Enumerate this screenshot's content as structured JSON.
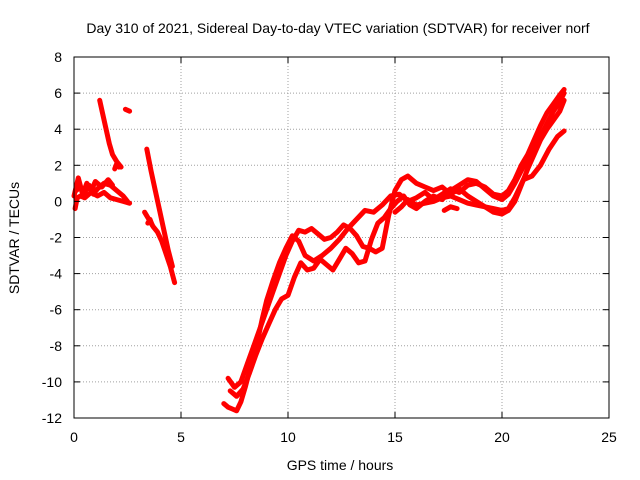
{
  "chart_data": {
    "type": "scatter",
    "title": "Day 310 of 2021, Sidereal Day-to-day VTEC variation (SDTVAR) for receiver norf",
    "xlabel": "GPS time / hours",
    "ylabel": "SDTVAR / TECUs",
    "xlim": [
      0,
      25
    ],
    "ylim": [
      -12,
      8
    ],
    "xticks": [
      0,
      5,
      10,
      15,
      20,
      25
    ],
    "yticks": [
      -12,
      -10,
      -8,
      -6,
      -4,
      -2,
      0,
      2,
      4,
      6,
      8
    ],
    "xtick_labels": [
      "0",
      "5",
      "10",
      "15",
      "20",
      "25"
    ],
    "ytick_labels": [
      "-12",
      "-10",
      "-8",
      "-6",
      "-4",
      "-2",
      "0",
      "2",
      "4",
      "6",
      "8"
    ],
    "grid": true,
    "legend": "none",
    "color": "#ff0000",
    "series": [
      {
        "x": [
          0,
          0.2,
          0.4,
          0.6,
          0.8,
          1.0,
          1.3,
          1.6,
          1.8
        ],
        "y": [
          0.3,
          1.3,
          0.4,
          1.0,
          0.6,
          1.1,
          0.8,
          1.2,
          0.9
        ]
      },
      {
        "x": [
          0.1,
          0.3,
          0.5,
          0.7,
          0.9,
          1.1,
          1.4,
          1.7,
          2.0,
          2.3,
          2.5
        ],
        "y": [
          0.6,
          0.8,
          0.5,
          0.9,
          0.4,
          0.7,
          1.0,
          0.9,
          0.6,
          0.3,
          0.0
        ]
      },
      {
        "x": [
          0.05,
          0.15,
          0.3,
          0.5,
          0.8,
          1.1,
          1.4,
          1.7,
          2.0,
          2.3,
          2.6
        ],
        "y": [
          -0.4,
          0.2,
          0.3,
          0.2,
          0.5,
          0.3,
          0.5,
          0.2,
          0.1,
          0.0,
          -0.1
        ]
      },
      {
        "x": [
          1.2,
          1.35,
          1.5,
          1.65,
          1.8,
          2.0,
          2.2
        ],
        "y": [
          5.6,
          4.8,
          4.0,
          3.2,
          2.6,
          2.2,
          1.9
        ]
      },
      {
        "x": [
          2.4,
          2.6
        ],
        "y": [
          5.1,
          5.0
        ]
      },
      {
        "x": [
          1.9,
          2.0,
          2.1
        ],
        "y": [
          1.8,
          2.1,
          1.9
        ]
      },
      {
        "x": [
          3.4,
          3.6,
          3.8,
          4.0,
          4.2,
          4.4,
          4.6
        ],
        "y": [
          2.9,
          1.7,
          0.6,
          -0.5,
          -1.6,
          -2.7,
          -3.6
        ]
      },
      {
        "x": [
          3.3,
          3.5,
          3.7,
          3.9,
          4.1,
          4.3,
          4.5,
          4.7
        ],
        "y": [
          -0.6,
          -1.0,
          -1.4,
          -1.7,
          -2.2,
          -2.9,
          -3.6,
          -4.5
        ]
      },
      {
        "x": [
          3.45,
          3.55,
          3.65
        ],
        "y": [
          -1.2,
          -1.0,
          -1.3
        ]
      },
      {
        "x": [
          7.0,
          7.2,
          7.4,
          7.6,
          7.8,
          8.0,
          8.2,
          8.4,
          8.6,
          8.8,
          9.0,
          9.3,
          9.6,
          9.9,
          10.2,
          10.5,
          10.8,
          11.2,
          11.6,
          12.0,
          12.4,
          12.8,
          13.2,
          13.6,
          14.0,
          14.4,
          14.8,
          15.2,
          15.6,
          16.0,
          16.4,
          16.8,
          17.2,
          17.6,
          18.0,
          18.4,
          18.8,
          19.2,
          19.6,
          20.0,
          20.3,
          20.6,
          20.9,
          21.2,
          21.5,
          21.8,
          22.1,
          22.4,
          22.7,
          22.9
        ],
        "y": [
          -11.2,
          -11.4,
          -11.5,
          -11.6,
          -11.1,
          -10.3,
          -9.4,
          -8.6,
          -7.6,
          -6.5,
          -5.5,
          -4.4,
          -3.4,
          -2.6,
          -1.9,
          -2.2,
          -3.0,
          -3.3,
          -3.0,
          -2.6,
          -2.1,
          -1.5,
          -1.0,
          -0.5,
          -0.6,
          -0.2,
          0.3,
          0.4,
          0.0,
          0.2,
          0.5,
          0.1,
          0.4,
          0.7,
          0.5,
          0.9,
          1.0,
          0.8,
          0.4,
          0.3,
          0.6,
          1.2,
          2.0,
          2.6,
          3.4,
          4.2,
          4.9,
          5.4,
          5.9,
          6.2
        ]
      },
      {
        "x": [
          7.2,
          7.5,
          7.8,
          8.1,
          8.4,
          8.7,
          9.0,
          9.3,
          9.6,
          9.9,
          10.2,
          10.5,
          10.8,
          11.1,
          11.4,
          11.7,
          12.0,
          12.3,
          12.6,
          12.9,
          13.2,
          13.5,
          13.8,
          14.1,
          14.4,
          14.7,
          15.0,
          15.3,
          15.6,
          16.0,
          16.4,
          16.8,
          17.2,
          17.6,
          18.0,
          18.4,
          18.8,
          19.2,
          19.6,
          20.0,
          20.3,
          20.6,
          20.9,
          21.2,
          21.5,
          21.8,
          22.1,
          22.4,
          22.7,
          22.9
        ],
        "y": [
          -9.8,
          -10.3,
          -10.0,
          -9.0,
          -8.0,
          -7.0,
          -6.0,
          -5.0,
          -4.0,
          -3.0,
          -2.2,
          -1.6,
          -1.7,
          -1.5,
          -1.8,
          -2.1,
          -2.0,
          -1.7,
          -1.3,
          -1.5,
          -1.9,
          -2.5,
          -2.6,
          -2.8,
          -2.6,
          -0.8,
          0.6,
          1.2,
          1.4,
          1.0,
          0.8,
          0.6,
          0.8,
          0.4,
          0.7,
          0.3,
          0.0,
          -0.3,
          -0.6,
          -0.7,
          -0.5,
          0.0,
          0.9,
          1.8,
          2.6,
          3.4,
          4.0,
          4.5,
          5.0,
          5.6
        ]
      },
      {
        "x": [
          7.3,
          7.6,
          7.9,
          8.2,
          8.5,
          8.8,
          9.1,
          9.4,
          9.7,
          10.0,
          10.3,
          10.6,
          10.9,
          11.2,
          11.5,
          11.8,
          12.1,
          12.4,
          12.7,
          13.0,
          13.3,
          13.6,
          13.9,
          14.2,
          14.5,
          14.8,
          15.1,
          15.4,
          15.7,
          16.0,
          16.4,
          16.8,
          17.2,
          17.6,
          18.0,
          18.4,
          18.8,
          19.2,
          19.6,
          20.0,
          20.3,
          20.6,
          20.9,
          21.2,
          21.5,
          21.8,
          22.1,
          22.4,
          22.7,
          22.9
        ],
        "y": [
          -10.5,
          -10.8,
          -10.4,
          -9.5,
          -8.5,
          -7.6,
          -6.8,
          -6.0,
          -5.4,
          -5.2,
          -4.2,
          -3.4,
          -3.8,
          -3.7,
          -3.2,
          -3.5,
          -3.8,
          -3.2,
          -2.6,
          -2.9,
          -3.4,
          -3.3,
          -2.1,
          -1.2,
          -0.9,
          -0.4,
          0.0,
          0.3,
          -0.2,
          -0.4,
          0.0,
          0.3,
          0.1,
          0.6,
          0.9,
          1.2,
          1.1,
          0.7,
          0.3,
          0.1,
          0.4,
          1.0,
          1.7,
          2.3,
          2.9,
          3.6,
          4.3,
          5.0,
          5.5,
          6.0
        ]
      },
      {
        "x": [
          15.0,
          15.3,
          15.6,
          16.0,
          16.4,
          16.8,
          17.2,
          17.6,
          18.0,
          18.4,
          18.8,
          19.2,
          19.6,
          20.0,
          20.3,
          20.6,
          21.0,
          21.4,
          21.8,
          22.2,
          22.6,
          22.9
        ],
        "y": [
          -0.6,
          -0.3,
          0.1,
          -0.2,
          -0.1,
          0.0,
          0.2,
          0.3,
          0.1,
          -0.1,
          -0.2,
          -0.3,
          -0.4,
          -0.5,
          -0.4,
          0.2,
          1.2,
          1.4,
          2.0,
          2.9,
          3.6,
          3.9
        ]
      },
      {
        "x": [
          17.3,
          17.6,
          17.9
        ],
        "y": [
          -0.5,
          -0.3,
          -0.4
        ]
      }
    ]
  }
}
